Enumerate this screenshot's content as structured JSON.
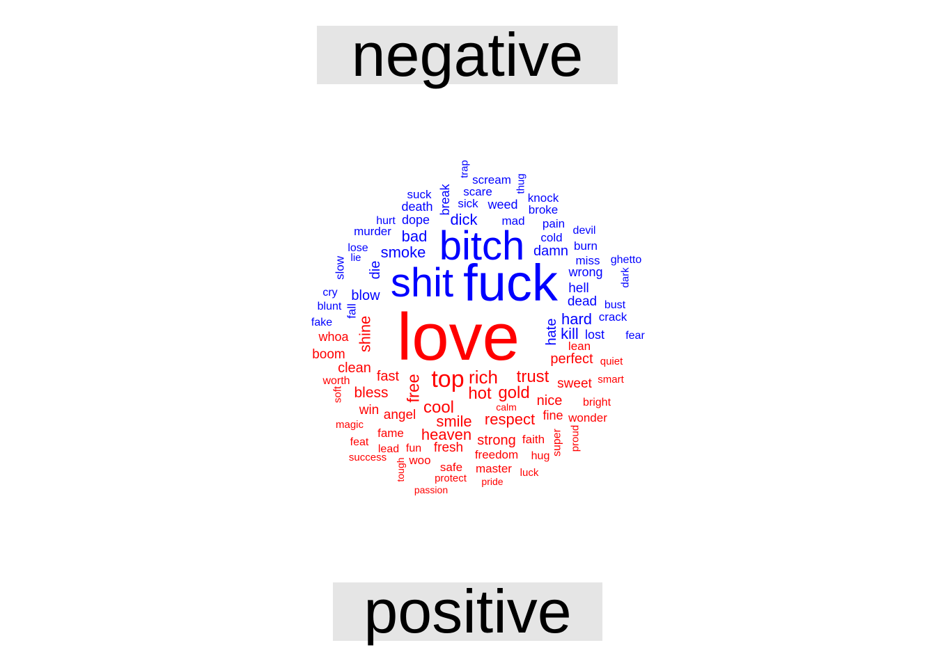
{
  "chart_data": {
    "type": "wordcloud",
    "groups": [
      {
        "label": "negative",
        "color": "#0000ff"
      },
      {
        "label": "positive",
        "color": "#ff0000"
      }
    ],
    "words": {
      "negative": [
        "fuck",
        "shit",
        "bitch",
        "bad",
        "smoke",
        "hard",
        "damn",
        "kill",
        "dick",
        "hate",
        "blow",
        "die",
        "dead",
        "hell",
        "wrong",
        "lost",
        "mad",
        "weed",
        "scream",
        "death",
        "dope",
        "murder",
        "break",
        "pain",
        "cold",
        "suck",
        "scare",
        "sick",
        "knock",
        "broke",
        "hurt",
        "burn",
        "miss",
        "ghetto",
        "lose",
        "devil",
        "fall",
        "slow",
        "lie",
        "bust",
        "crack",
        "fear",
        "cry",
        "blunt",
        "fake",
        "dark",
        "thug",
        "trap"
      ],
      "positive": [
        "love",
        "top",
        "rich",
        "hot",
        "gold",
        "free",
        "trust",
        "shine",
        "cool",
        "smile",
        "respect",
        "heaven",
        "fast",
        "bless",
        "nice",
        "perfect",
        "sweet",
        "clean",
        "strong",
        "fresh",
        "angel",
        "win",
        "fine",
        "boom",
        "whoa",
        "lean",
        "wonder",
        "fame",
        "master",
        "safe",
        "freedom",
        "faith",
        "worth",
        "hug",
        "smart",
        "bright",
        "quiet",
        "fun",
        "lead",
        "woo",
        "feat",
        "magic",
        "soft",
        "super",
        "proud",
        "protect",
        "success",
        "pride",
        "luck",
        "calm",
        "tough",
        "passion"
      ]
    }
  }
}
